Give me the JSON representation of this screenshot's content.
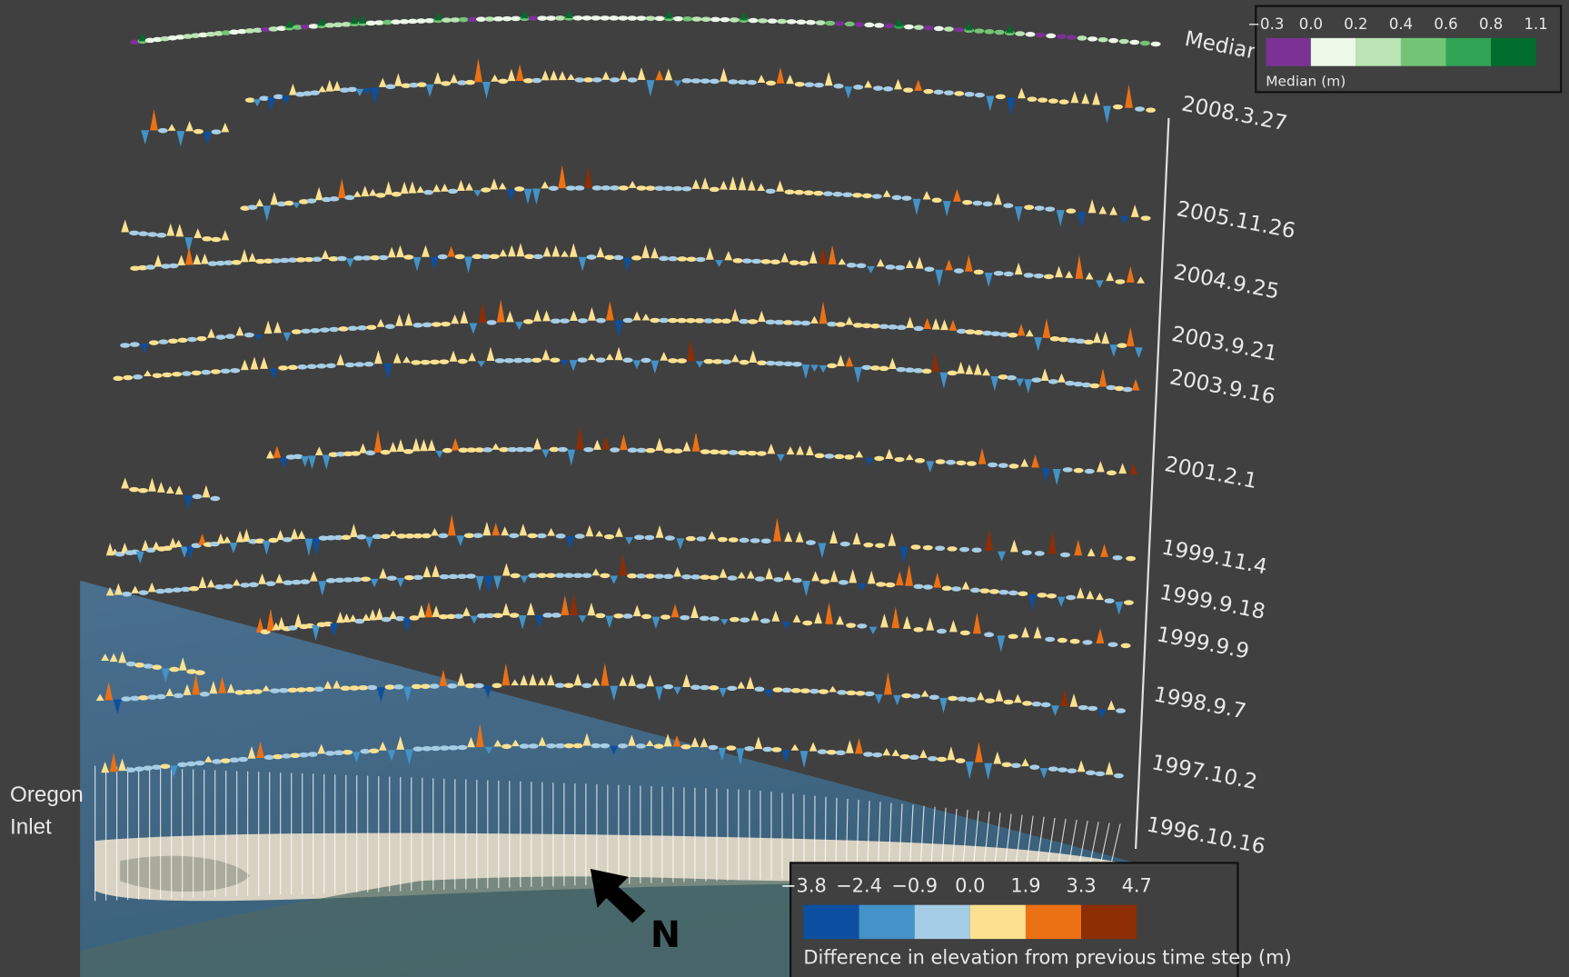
{
  "profiles": [
    {
      "label": "Median"
    },
    {
      "label": "2008.3.27"
    },
    {
      "label": "2005.11.26"
    },
    {
      "label": "2004.9.25"
    },
    {
      "label": "2003.9.21"
    },
    {
      "label": "2003.9.16"
    },
    {
      "label": "2001.2.1"
    },
    {
      "label": "1999.11.4"
    },
    {
      "label": "1999.9.18"
    },
    {
      "label": "1999.9.9"
    },
    {
      "label": "1998.9.7"
    },
    {
      "label": "1997.10.2"
    },
    {
      "label": "1996.10.16"
    }
  ],
  "annotations": {
    "inlet": [
      "Oregon",
      "Inlet"
    ],
    "north": "N"
  },
  "legends": {
    "median": {
      "title": "Median (m)",
      "ticks": [
        "−0.3",
        "0.0",
        "0.2",
        "0.4",
        "0.6",
        "0.8",
        "1.1"
      ],
      "colors": [
        "#7b3294",
        "#edf8e9",
        "#bae4b3",
        "#74c476",
        "#31a354",
        "#006d2c"
      ]
    },
    "difference": {
      "title": "Difference in elevation from previous time step (m)",
      "ticks": [
        "−3.8",
        "−2.4",
        "−0.9",
        "0.0",
        "1.9",
        "3.3",
        "4.7"
      ],
      "colors": [
        "#0c4fa0",
        "#4392c8",
        "#a6cde6",
        "#fde190",
        "#ec7014",
        "#8c2d04"
      ]
    }
  }
}
